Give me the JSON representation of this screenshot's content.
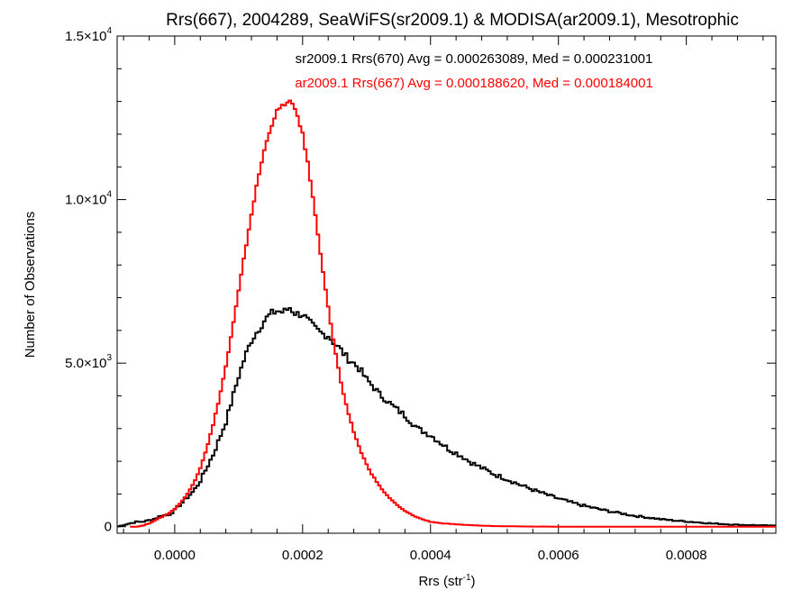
{
  "chart_data": {
    "type": "line",
    "step": true,
    "title": "Rrs(667), 2004289, SeaWiFS(sr2009.1) & MODISA(ar2009.1), Mesotrophic",
    "xlabel": {
      "base": "Rrs (str",
      "sup": "-1",
      "tail": ")"
    },
    "ylabel": "Number of Observations",
    "xlim": [
      -9e-05,
      0.00094
    ],
    "ylim": [
      -200,
      15000
    ],
    "x_ticks": [
      {
        "value": 0.0,
        "label": "0.0000"
      },
      {
        "value": 0.0002,
        "label": "0.0002"
      },
      {
        "value": 0.0004,
        "label": "0.0004"
      },
      {
        "value": 0.0006,
        "label": "0.0006"
      },
      {
        "value": 0.0008,
        "label": "0.0008"
      }
    ],
    "y_ticks": [
      {
        "value": 0,
        "mant": "0",
        "exp": ""
      },
      {
        "value": 5000,
        "mant": "5.0×10",
        "exp": "3"
      },
      {
        "value": 10000,
        "mant": "1.0×10",
        "exp": "4"
      },
      {
        "value": 15000,
        "mant": "1.5×10",
        "exp": "4"
      }
    ],
    "legend": [
      {
        "text": "sr2009.1 Rrs(670) Avg = 0.000263089, Med = 0.000231001",
        "color": "#000000"
      },
      {
        "text": "ar2009.1 Rrs(667) Avg = 0.000188620, Med = 0.000184001",
        "color": "#ff0000"
      }
    ],
    "series": [
      {
        "color": "#000000",
        "x": [
          -9e-05,
          -8e-05,
          -7e-05,
          -6e-05,
          -5e-05,
          -4e-05,
          -3e-05,
          -2e-05,
          -1e-05,
          0.0,
          1e-05,
          2e-05,
          3e-05,
          4e-05,
          5e-05,
          6e-05,
          7e-05,
          8e-05,
          9e-05,
          0.0001,
          0.00011,
          0.00012,
          0.00013,
          0.00014,
          0.00015,
          0.00016,
          0.00017,
          0.00018,
          0.00019,
          0.0002,
          0.00021,
          0.00022,
          0.00023,
          0.00024,
          0.00025,
          0.00026,
          0.00027,
          0.00028,
          0.00029,
          0.0003,
          0.00031,
          0.00032,
          0.00033,
          0.00034,
          0.00035,
          0.00036,
          0.00037,
          0.00038,
          0.00039,
          0.0004,
          0.00041,
          0.00042,
          0.00043,
          0.00044,
          0.00045,
          0.00046,
          0.00047,
          0.00048,
          0.00049,
          0.0005,
          0.00052,
          0.00054,
          0.00056,
          0.00058,
          0.0006,
          0.00062,
          0.00064,
          0.00066,
          0.00068,
          0.0007,
          0.00072,
          0.00074,
          0.00076,
          0.00078,
          0.0008,
          0.00082,
          0.00084,
          0.00086,
          0.00088,
          0.0009,
          0.00092,
          0.00094
        ],
        "y": [
          0,
          50,
          100,
          150,
          150,
          200,
          250,
          350,
          350,
          500,
          700,
          900,
          1100,
          1400,
          1800,
          2200,
          2700,
          3200,
          3900,
          4600,
          5200,
          5700,
          6000,
          6300,
          6500,
          6600,
          6550,
          6700,
          6500,
          6500,
          6250,
          6050,
          5900,
          5850,
          5600,
          5400,
          5150,
          5000,
          4800,
          4500,
          4300,
          4050,
          3900,
          3700,
          3550,
          3400,
          3200,
          3000,
          2900,
          2800,
          2650,
          2500,
          2350,
          2250,
          2150,
          2000,
          1900,
          1800,
          1700,
          1600,
          1450,
          1280,
          1130,
          990,
          860,
          740,
          640,
          550,
          470,
          400,
          330,
          280,
          230,
          190,
          160,
          130,
          100,
          80,
          60,
          50,
          40,
          30
        ]
      },
      {
        "color": "#ff0000",
        "x": [
          -7e-05,
          -6e-05,
          -5e-05,
          -4e-05,
          -3e-05,
          -2e-05,
          -1e-05,
          0.0,
          1e-05,
          2e-05,
          3e-05,
          4e-05,
          5e-05,
          6e-05,
          7e-05,
          8e-05,
          9e-05,
          0.0001,
          0.00011,
          0.00012,
          0.00013,
          0.00014,
          0.00015,
          0.00016,
          0.00017,
          0.00018,
          0.00019,
          0.0002,
          0.00021,
          0.00022,
          0.00023,
          0.00024,
          0.00025,
          0.00026,
          0.00027,
          0.00028,
          0.00029,
          0.0003,
          0.00031,
          0.00032,
          0.00033,
          0.00034,
          0.00035,
          0.00036,
          0.00037,
          0.00038,
          0.00039,
          0.0004,
          0.00042,
          0.00044,
          0.00046,
          0.00048,
          0.0005,
          0.00052,
          0.00054,
          0.00056,
          0.00058,
          0.0006,
          0.00062,
          0.00064,
          0.00066,
          0.00068,
          0.0007,
          0.00074,
          0.00078,
          0.00082,
          0.00086,
          0.0009,
          0.00094
        ],
        "y": [
          0,
          0,
          30,
          100,
          200,
          300,
          400,
          550,
          750,
          1000,
          1350,
          1800,
          2400,
          3100,
          3950,
          4900,
          6000,
          7200,
          8400,
          9550,
          10600,
          11500,
          12200,
          12700,
          12900,
          13000,
          12700,
          12000,
          10900,
          9500,
          8100,
          6700,
          5500,
          4400,
          3550,
          2900,
          2350,
          1900,
          1550,
          1250,
          1000,
          800,
          620,
          480,
          370,
          280,
          210,
          150,
          100,
          70,
          50,
          30,
          20,
          15,
          10,
          5,
          5,
          0,
          0,
          0,
          0,
          0,
          0,
          0,
          0,
          0,
          0,
          0,
          0
        ]
      }
    ]
  }
}
